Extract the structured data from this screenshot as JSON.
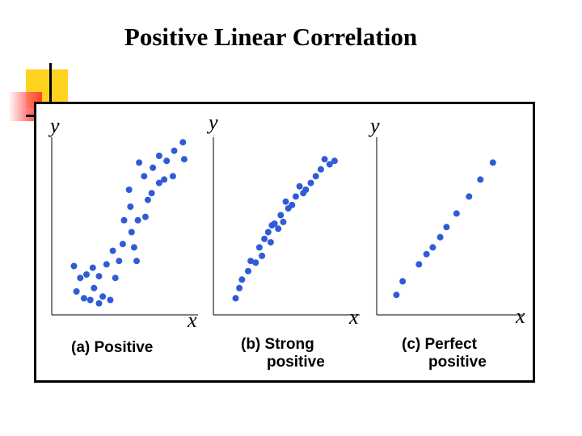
{
  "slide": {
    "title": "Positive Linear Correlation"
  },
  "chart_data": [
    {
      "type": "scatter",
      "title": "(a) Positive",
      "xlabel": "x",
      "ylabel": "y",
      "xlim": [
        0,
        10
      ],
      "ylim": [
        0,
        10
      ],
      "points": [
        [
          1.0,
          2.5
        ],
        [
          1.5,
          1.8
        ],
        [
          2.0,
          2.0
        ],
        [
          2.5,
          2.4
        ],
        [
          1.2,
          1.0
        ],
        [
          1.8,
          0.6
        ],
        [
          2.6,
          1.2
        ],
        [
          3.0,
          1.9
        ],
        [
          3.3,
          0.7
        ],
        [
          2.3,
          0.5
        ],
        [
          3.6,
          2.6
        ],
        [
          3.0,
          0.3
        ],
        [
          3.9,
          0.5
        ],
        [
          4.3,
          1.8
        ],
        [
          4.6,
          2.8
        ],
        [
          4.1,
          3.4
        ],
        [
          4.9,
          3.8
        ],
        [
          5.0,
          5.2
        ],
        [
          5.6,
          4.5
        ],
        [
          5.8,
          3.6
        ],
        [
          6.0,
          2.8
        ],
        [
          6.1,
          5.2
        ],
        [
          5.5,
          6.0
        ],
        [
          6.7,
          5.4
        ],
        [
          6.9,
          6.4
        ],
        [
          5.4,
          7.0
        ],
        [
          6.6,
          7.8
        ],
        [
          7.2,
          6.8
        ],
        [
          7.8,
          7.4
        ],
        [
          7.3,
          8.3
        ],
        [
          8.2,
          7.6
        ],
        [
          8.9,
          7.8
        ],
        [
          8.4,
          8.7
        ],
        [
          9.0,
          9.3
        ],
        [
          9.7,
          9.8
        ],
        [
          9.8,
          8.8
        ],
        [
          6.2,
          8.6
        ],
        [
          7.8,
          9.0
        ]
      ]
    },
    {
      "type": "scatter",
      "title": "(b) Strong positive",
      "xlabel": "x",
      "ylabel": "y",
      "xlim": [
        0,
        10
      ],
      "ylim": [
        0,
        10
      ],
      "points": [
        [
          1.0,
          0.6
        ],
        [
          1.3,
          1.2
        ],
        [
          1.5,
          1.7
        ],
        [
          2.0,
          2.2
        ],
        [
          2.2,
          2.8
        ],
        [
          2.6,
          2.7
        ],
        [
          2.9,
          3.6
        ],
        [
          3.1,
          3.1
        ],
        [
          3.3,
          4.1
        ],
        [
          3.6,
          4.5
        ],
        [
          3.8,
          3.9
        ],
        [
          4.1,
          5.0
        ],
        [
          4.4,
          4.7
        ],
        [
          4.6,
          5.5
        ],
        [
          4.8,
          5.1
        ],
        [
          5.2,
          5.9
        ],
        [
          5.5,
          6.1
        ],
        [
          5.8,
          6.6
        ],
        [
          6.1,
          7.2
        ],
        [
          6.6,
          7.0
        ],
        [
          7.0,
          7.4
        ],
        [
          7.4,
          7.8
        ],
        [
          7.8,
          8.2
        ],
        [
          8.1,
          8.8
        ],
        [
          8.5,
          8.5
        ],
        [
          8.9,
          8.7
        ],
        [
          5.0,
          6.3
        ],
        [
          6.4,
          6.8
        ],
        [
          3.9,
          4.9
        ]
      ]
    },
    {
      "type": "scatter",
      "title": "(c) Perfect positive",
      "xlabel": "x",
      "ylabel": "y",
      "xlim": [
        0,
        10
      ],
      "ylim": [
        0,
        10
      ],
      "points": [
        [
          0.8,
          0.8
        ],
        [
          1.3,
          1.6
        ],
        [
          2.6,
          2.6
        ],
        [
          3.2,
          3.2
        ],
        [
          3.7,
          3.6
        ],
        [
          4.3,
          4.2
        ],
        [
          4.8,
          4.8
        ],
        [
          5.6,
          5.6
        ],
        [
          6.6,
          6.6
        ],
        [
          7.5,
          7.6
        ],
        [
          8.5,
          8.6
        ]
      ]
    }
  ]
}
